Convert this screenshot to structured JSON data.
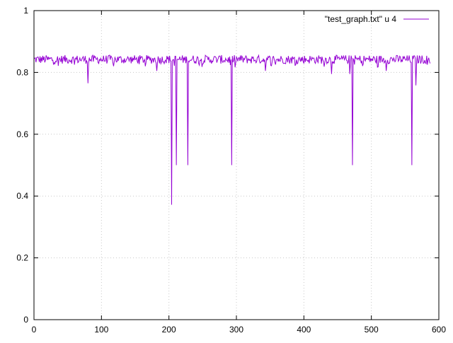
{
  "chart_data": {
    "type": "line",
    "title": "",
    "xlabel": "",
    "ylabel": "",
    "xlim": [
      0,
      600
    ],
    "ylim": [
      0,
      1
    ],
    "x_ticks": [
      0,
      100,
      200,
      300,
      400,
      500,
      600
    ],
    "y_ticks": [
      0,
      0.2,
      0.4,
      0.6,
      0.8,
      1
    ],
    "x_tick_labels": [
      "0",
      "100",
      "200",
      "300",
      "400",
      "500",
      "600"
    ],
    "y_tick_labels": [
      "0",
      "0.2",
      "0.4",
      "0.6",
      "0.8",
      "1"
    ],
    "grid": true,
    "legend_position": "top-right",
    "series": [
      {
        "name": "\"test_graph.txt\" u 4",
        "color": "#9400d3",
        "x_start": 0,
        "x_step": 1,
        "baseline": 0.842,
        "noise_amplitude": 0.014,
        "dips": [
          {
            "x": 80,
            "y": 0.765
          },
          {
            "x": 182,
            "y": 0.805
          },
          {
            "x": 204,
            "y": 0.372
          },
          {
            "x": 211,
            "y": 0.5
          },
          {
            "x": 228,
            "y": 0.5
          },
          {
            "x": 293,
            "y": 0.5
          },
          {
            "x": 343,
            "y": 0.805
          },
          {
            "x": 441,
            "y": 0.795
          },
          {
            "x": 468,
            "y": 0.795
          },
          {
            "x": 472,
            "y": 0.5
          },
          {
            "x": 522,
            "y": 0.805
          },
          {
            "x": 560,
            "y": 0.5
          },
          {
            "x": 566,
            "y": 0.758
          }
        ],
        "x_end": 587
      }
    ]
  }
}
